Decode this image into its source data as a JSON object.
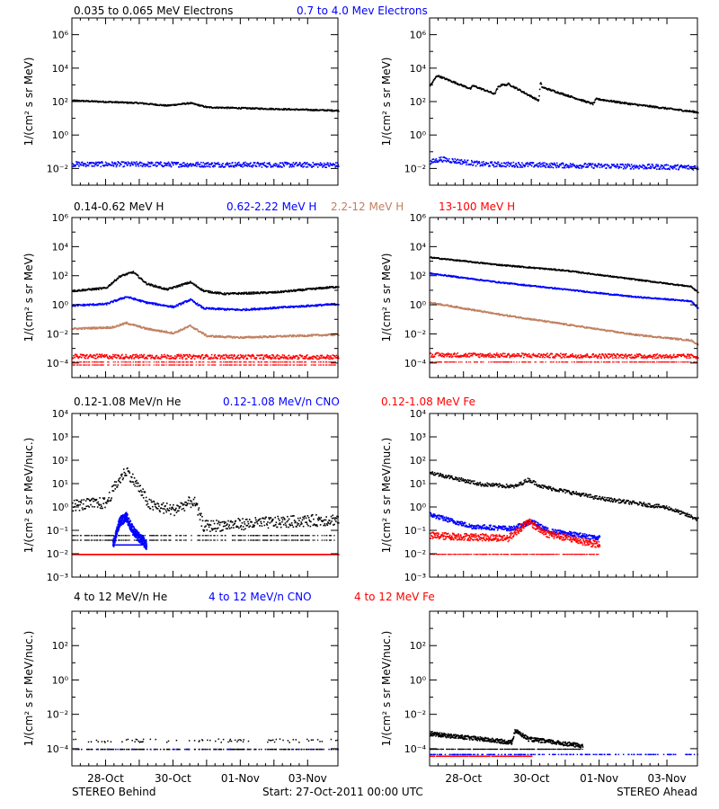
{
  "legends": [
    [
      {
        "text": "0.035 to 0.065 MeV Electrons",
        "color": "#000000"
      },
      {
        "text": "0.7 to 4.0 Mev Electrons",
        "color": "#0000ff"
      }
    ],
    [
      {
        "text": "0.14-0.62 MeV H",
        "color": "#000000"
      },
      {
        "text": "0.62-2.22 MeV H",
        "color": "#0000ff"
      },
      {
        "text": "2.2-12 MeV H",
        "color": "#c08060"
      },
      {
        "text": "13-100 MeV H",
        "color": "#ff0000"
      }
    ],
    [
      {
        "text": "0.12-1.08 MeV/n He",
        "color": "#000000"
      },
      {
        "text": "0.12-1.08 MeV/n CNO",
        "color": "#0000ff"
      },
      {
        "text": "0.12-1.08 MeV Fe",
        "color": "#ff0000"
      }
    ],
    [
      {
        "text": "4 to 12 MeV/n He",
        "color": "#000000"
      },
      {
        "text": "4 to 12 MeV/n CNO",
        "color": "#0000ff"
      },
      {
        "text": "4 to 12 MeV Fe",
        "color": "#ff0000"
      }
    ]
  ],
  "footer": {
    "left": "STEREO Behind",
    "center": "Start: 27-Oct-2011 00:00 UTC",
    "right": "STEREO Ahead"
  },
  "x_tick_labels": [
    "28-Oct",
    "30-Oct",
    "01-Nov",
    "03-Nov"
  ],
  "chart_data": [
    {
      "type": "scatter",
      "row": 0,
      "col": 0,
      "ylabel": "1/(cm² s sr MeV)",
      "yscale": "log",
      "ylim": [
        -3,
        7
      ],
      "y_tick_exponents": [
        -2,
        0,
        2,
        4,
        6
      ],
      "xlim": [
        0,
        7.9
      ],
      "x_tick_days": [
        1,
        3,
        5,
        7
      ],
      "series": [
        {
          "color": "#000000",
          "profile": [
            [
              0,
              2.1
            ],
            [
              2,
              1.95
            ],
            [
              2.8,
              1.8
            ],
            [
              3.5,
              1.95
            ],
            [
              4,
              1.7
            ],
            [
              6,
              1.6
            ],
            [
              7.9,
              1.5
            ]
          ],
          "spread": 0.04
        },
        {
          "color": "#0000ff",
          "profile": [
            [
              0,
              -1.7
            ],
            [
              7.9,
              -1.75
            ]
          ],
          "spread": 0.15
        }
      ]
    },
    {
      "type": "scatter",
      "row": 0,
      "col": 1,
      "ylabel": "1/(cm² s sr MeV)",
      "yscale": "log",
      "ylim": [
        -3,
        7
      ],
      "y_tick_exponents": [
        -2,
        0,
        2,
        4,
        6
      ],
      "xlim": [
        0,
        7.9
      ],
      "x_tick_days": [
        1,
        3,
        5,
        7
      ],
      "series": [
        {
          "color": "#000000",
          "profile": [
            [
              0,
              3.0
            ],
            [
              0.2,
              3.6
            ],
            [
              1.2,
              2.8
            ],
            [
              1.25,
              3.0
            ],
            [
              1.9,
              2.5
            ],
            [
              2.0,
              2.9
            ],
            [
              2.15,
              3.1
            ],
            [
              2.2,
              3.0
            ],
            [
              2.3,
              3.1
            ],
            [
              3.2,
              2.1
            ],
            [
              3.25,
              3.2
            ],
            [
              3.3,
              2.9
            ],
            [
              4.8,
              1.9
            ],
            [
              4.9,
              2.2
            ],
            [
              5.9,
              1.9
            ],
            [
              7.9,
              1.4
            ]
          ],
          "spread": 0.05
        },
        {
          "color": "#0000ff",
          "profile": [
            [
              0,
              -1.6
            ],
            [
              0.3,
              -1.4
            ],
            [
              1.5,
              -1.7
            ],
            [
              7.9,
              -1.9
            ]
          ],
          "spread": 0.15
        }
      ]
    },
    {
      "type": "scatter",
      "row": 1,
      "col": 0,
      "ylabel": "1/(cm² s sr MeV)",
      "yscale": "log",
      "ylim": [
        -5,
        6
      ],
      "y_tick_exponents": [
        -4,
        -2,
        0,
        2,
        4,
        6
      ],
      "xlim": [
        0,
        7.9
      ],
      "x_tick_days": [
        1,
        3,
        5,
        7
      ],
      "series": [
        {
          "color": "#000000",
          "profile": [
            [
              0,
              1.0
            ],
            [
              1.0,
              1.2
            ],
            [
              1.4,
              2.0
            ],
            [
              1.8,
              2.3
            ],
            [
              2.2,
              1.5
            ],
            [
              2.8,
              1.1
            ],
            [
              3.5,
              1.6
            ],
            [
              3.9,
              1.0
            ],
            [
              4.5,
              0.8
            ],
            [
              6,
              0.9
            ],
            [
              7.9,
              1.3
            ]
          ],
          "spread": 0.06
        },
        {
          "color": "#0000ff",
          "profile": [
            [
              0,
              0.0
            ],
            [
              1.0,
              0.1
            ],
            [
              1.6,
              0.6
            ],
            [
              2.2,
              0.2
            ],
            [
              3.0,
              -0.1
            ],
            [
              3.5,
              0.4
            ],
            [
              3.9,
              -0.2
            ],
            [
              5,
              -0.3
            ],
            [
              7.9,
              0.1
            ]
          ],
          "spread": 0.06
        },
        {
          "color": "#c08060",
          "profile": [
            [
              0,
              -1.6
            ],
            [
              1.2,
              -1.5
            ],
            [
              1.6,
              -1.2
            ],
            [
              2.2,
              -1.6
            ],
            [
              3.0,
              -1.9
            ],
            [
              3.5,
              -1.4
            ],
            [
              4.0,
              -2.1
            ],
            [
              5,
              -2.2
            ],
            [
              7.9,
              -2.0
            ]
          ],
          "spread": 0.06
        },
        {
          "color": "#ff0000",
          "profile": [
            [
              0,
              -3.5
            ],
            [
              7.9,
              -3.55
            ]
          ],
          "spread": 0.15,
          "floors": [
            -3.9,
            -4.1
          ]
        }
      ]
    },
    {
      "type": "scatter",
      "row": 1,
      "col": 1,
      "ylabel": "1/(cm² s sr MeV)",
      "yscale": "log",
      "ylim": [
        -5,
        6
      ],
      "y_tick_exponents": [
        -4,
        -2,
        0,
        2,
        4,
        6
      ],
      "xlim": [
        0,
        7.9
      ],
      "x_tick_days": [
        1,
        3,
        5,
        7
      ],
      "series": [
        {
          "color": "#000000",
          "profile": [
            [
              0,
              3.3
            ],
            [
              2,
              2.8
            ],
            [
              4,
              2.4
            ],
            [
              6,
              1.8
            ],
            [
              7.7,
              1.3
            ],
            [
              7.9,
              0.9
            ]
          ],
          "spread": 0.04
        },
        {
          "color": "#0000ff",
          "profile": [
            [
              0,
              2.2
            ],
            [
              2,
              1.6
            ],
            [
              4,
              1.1
            ],
            [
              6,
              0.6
            ],
            [
              7.7,
              0.3
            ],
            [
              7.9,
              -0.2
            ]
          ],
          "spread": 0.04
        },
        {
          "color": "#c08060",
          "profile": [
            [
              0,
              0.2
            ],
            [
              2,
              -0.6
            ],
            [
              4,
              -1.3
            ],
            [
              6,
              -2.0
            ],
            [
              7.7,
              -2.4
            ],
            [
              7.9,
              -2.7
            ]
          ],
          "spread": 0.05
        },
        {
          "color": "#ff0000",
          "profile": [
            [
              0,
              -3.4
            ],
            [
              7.9,
              -3.5
            ]
          ],
          "spread": 0.15,
          "floors": [
            -3.9
          ]
        }
      ]
    },
    {
      "type": "scatter",
      "row": 2,
      "col": 0,
      "ylabel": "1/(cm² s sr MeV/nuc.)",
      "yscale": "log",
      "ylim": [
        -3,
        4
      ],
      "y_tick_exponents": [
        -3,
        -2,
        -1,
        0,
        1,
        2,
        3,
        4
      ],
      "xlim": [
        0,
        7.9
      ],
      "x_tick_days": [
        1,
        3,
        5,
        7
      ],
      "series": [
        {
          "color": "#000000",
          "profile": [
            [
              0,
              0.1
            ],
            [
              1.0,
              0.2
            ],
            [
              1.3,
              1.0
            ],
            [
              1.6,
              1.6
            ],
            [
              1.9,
              1.0
            ],
            [
              2.3,
              0.1
            ],
            [
              3.0,
              -0.1
            ],
            [
              3.6,
              0.3
            ],
            [
              3.9,
              -0.8
            ],
            [
              5,
              -0.7
            ],
            [
              7.9,
              -0.5
            ]
          ],
          "spread": 0.25,
          "floors": [
            -1.2,
            -1.4
          ]
        },
        {
          "color": "#0000ff",
          "profile": [
            [
              1.2,
              -1.6
            ],
            [
              1.4,
              -0.6
            ],
            [
              1.6,
              -0.4
            ],
            [
              1.8,
              -1.0
            ],
            [
              2.2,
              -1.6
            ]
          ],
          "spread": 0.2,
          "floors": [
            -1.6
          ]
        },
        {
          "color": "#ff0000",
          "profile": [
            [
              0,
              -2.0
            ],
            [
              7.9,
              -2.0
            ]
          ],
          "spread": 0.0,
          "floors": [
            -2.0
          ]
        }
      ]
    },
    {
      "type": "scatter",
      "row": 2,
      "col": 1,
      "ylabel": "1/(cm² s sr MeV/nuc.)",
      "yscale": "log",
      "ylim": [
        -3,
        4
      ],
      "y_tick_exponents": [
        -3,
        -2,
        -1,
        0,
        1,
        2,
        3,
        4
      ],
      "xlim": [
        0,
        7.9
      ],
      "x_tick_days": [
        1,
        3,
        5,
        7
      ],
      "series": [
        {
          "color": "#000000",
          "profile": [
            [
              0,
              1.5
            ],
            [
              1.5,
              1.0
            ],
            [
              2.5,
              0.9
            ],
            [
              2.9,
              1.2
            ],
            [
              3.3,
              0.9
            ],
            [
              5,
              0.4
            ],
            [
              7.0,
              0.0
            ],
            [
              7.9,
              -0.5
            ]
          ],
          "spread": 0.08
        },
        {
          "color": "#0000ff",
          "profile": [
            [
              0,
              -0.3
            ],
            [
              1.2,
              -0.8
            ],
            [
              2.4,
              -0.9
            ],
            [
              3.0,
              -0.6
            ],
            [
              3.5,
              -1.0
            ],
            [
              5.0,
              -1.3
            ]
          ],
          "spread": 0.1
        },
        {
          "color": "#ff0000",
          "profile": [
            [
              0,
              -1.2
            ],
            [
              2.3,
              -1.3
            ],
            [
              2.9,
              -0.6
            ],
            [
              3.4,
              -1.1
            ],
            [
              5.0,
              -1.6
            ]
          ],
          "spread": 0.15,
          "floors": [
            -2.0
          ]
        }
      ]
    },
    {
      "type": "scatter",
      "row": 3,
      "col": 0,
      "ylabel": "1/(cm² s sr MeV/nuc.)",
      "yscale": "log",
      "ylim": [
        -5,
        4
      ],
      "y_tick_exponents": [
        -4,
        -2,
        0,
        2
      ],
      "xlim": [
        0,
        7.9
      ],
      "x_tick_days": [
        1,
        3,
        5,
        7
      ],
      "series": [
        {
          "color": "#000000",
          "profile": [
            [
              0,
              -4
            ],
            [
              7.9,
              -4
            ]
          ],
          "spread": 0.0,
          "floors": [
            -4
          ],
          "sparse": 0.35
        },
        {
          "color": "#0000ff",
          "profile": [
            [
              0,
              -4
            ],
            [
              7.9,
              -4
            ]
          ],
          "spread": 0.0,
          "floors": [
            -4
          ],
          "sparse": 0.05
        }
      ]
    },
    {
      "type": "scatter",
      "row": 3,
      "col": 1,
      "ylabel": "1/(cm² s sr MeV/nuc.)",
      "yscale": "log",
      "ylim": [
        -5,
        4
      ],
      "y_tick_exponents": [
        -4,
        -2,
        0,
        2
      ],
      "xlim": [
        0,
        7.9
      ],
      "x_tick_days": [
        1,
        3,
        5,
        7
      ],
      "series": [
        {
          "color": "#000000",
          "profile": [
            [
              0,
              -3.1
            ],
            [
              1.5,
              -3.4
            ],
            [
              2.4,
              -3.6
            ],
            [
              2.5,
              -2.9
            ],
            [
              2.9,
              -3.4
            ],
            [
              4.5,
              -3.8
            ]
          ],
          "spread": 0.12,
          "floors": [
            -4
          ]
        },
        {
          "color": "#0000ff",
          "profile": [
            [
              0,
              -4
            ],
            [
              7.9,
              -4
            ]
          ],
          "spread": 0.0,
          "floors": [
            -4.3
          ],
          "sparse": 0.3
        },
        {
          "color": "#ff0000",
          "profile": [
            [
              0,
              -4.4
            ],
            [
              3,
              -4.4
            ]
          ],
          "spread": 0.0,
          "floors": [
            -4.4
          ],
          "sparse": 0.5
        }
      ]
    }
  ]
}
